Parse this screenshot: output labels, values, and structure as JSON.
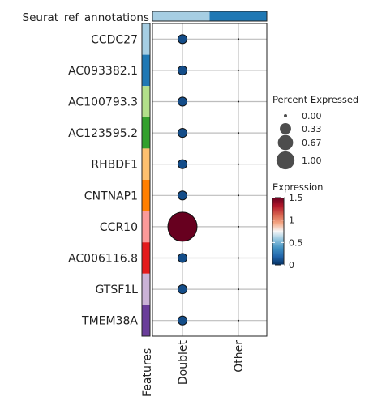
{
  "chart_data": {
    "type": "scatter",
    "annotation_title": "Seurat_ref_annotations",
    "annotation_colors": [
      "#a6cee3",
      "#1f78b4"
    ],
    "groups": [
      "Doublet",
      "Other"
    ],
    "features_axis_label": "Features",
    "features": [
      {
        "name": "CCDC27",
        "color": "#a6cee3",
        "doublet_pct": 0.05,
        "doublet_expr": 0.1,
        "other_pct": 0.0,
        "other_expr": 0.0
      },
      {
        "name": "AC093382.1",
        "color": "#1f78b4",
        "doublet_pct": 0.05,
        "doublet_expr": 0.1,
        "other_pct": 0.0,
        "other_expr": 0.0
      },
      {
        "name": "AC100793.3",
        "color": "#b2df8a",
        "doublet_pct": 0.05,
        "doublet_expr": 0.1,
        "other_pct": 0.0,
        "other_expr": 0.0
      },
      {
        "name": "AC123595.2",
        "color": "#33a02c",
        "doublet_pct": 0.05,
        "doublet_expr": 0.1,
        "other_pct": 0.0,
        "other_expr": 0.0
      },
      {
        "name": "RHBDF1",
        "color": "#fdbf6f",
        "doublet_pct": 0.05,
        "doublet_expr": 0.1,
        "other_pct": 0.0,
        "other_expr": 0.0
      },
      {
        "name": "CNTNAP1",
        "color": "#ff7f00",
        "doublet_pct": 0.05,
        "doublet_expr": 0.1,
        "other_pct": 0.0,
        "other_expr": 0.0
      },
      {
        "name": "CCR10",
        "color": "#fb9a99",
        "doublet_pct": 1.0,
        "doublet_expr": 1.5,
        "other_pct": 0.0,
        "other_expr": 0.0
      },
      {
        "name": "AC006116.8",
        "color": "#e31a1c",
        "doublet_pct": 0.05,
        "doublet_expr": 0.1,
        "other_pct": 0.0,
        "other_expr": 0.0
      },
      {
        "name": "GTSF1L",
        "color": "#cab2d6",
        "doublet_pct": 0.05,
        "doublet_expr": 0.1,
        "other_pct": 0.0,
        "other_expr": 0.0
      },
      {
        "name": "TMEM38A",
        "color": "#6a3d9a",
        "doublet_pct": 0.05,
        "doublet_expr": 0.1,
        "other_pct": 0.0,
        "other_expr": 0.0
      }
    ],
    "size_legend": {
      "title": "Percent Expressed",
      "values": [
        0.0,
        0.33,
        0.67,
        1.0
      ],
      "labels": [
        "0.00",
        "0.33",
        "0.67",
        "1.00"
      ]
    },
    "color_legend": {
      "title": "Expression",
      "range": [
        0,
        1.5
      ],
      "ticks": [
        0,
        0.5,
        1,
        1.5
      ],
      "tick_labels": [
        "0",
        "0.5",
        "1",
        "1.5"
      ],
      "colors": [
        "#053061",
        "#2166ac",
        "#4393c3",
        "#92c5de",
        "#f7f7f7",
        "#f4a582",
        "#d6604d",
        "#b2182b",
        "#67001f"
      ]
    },
    "grid": true,
    "legend_position": "right"
  }
}
